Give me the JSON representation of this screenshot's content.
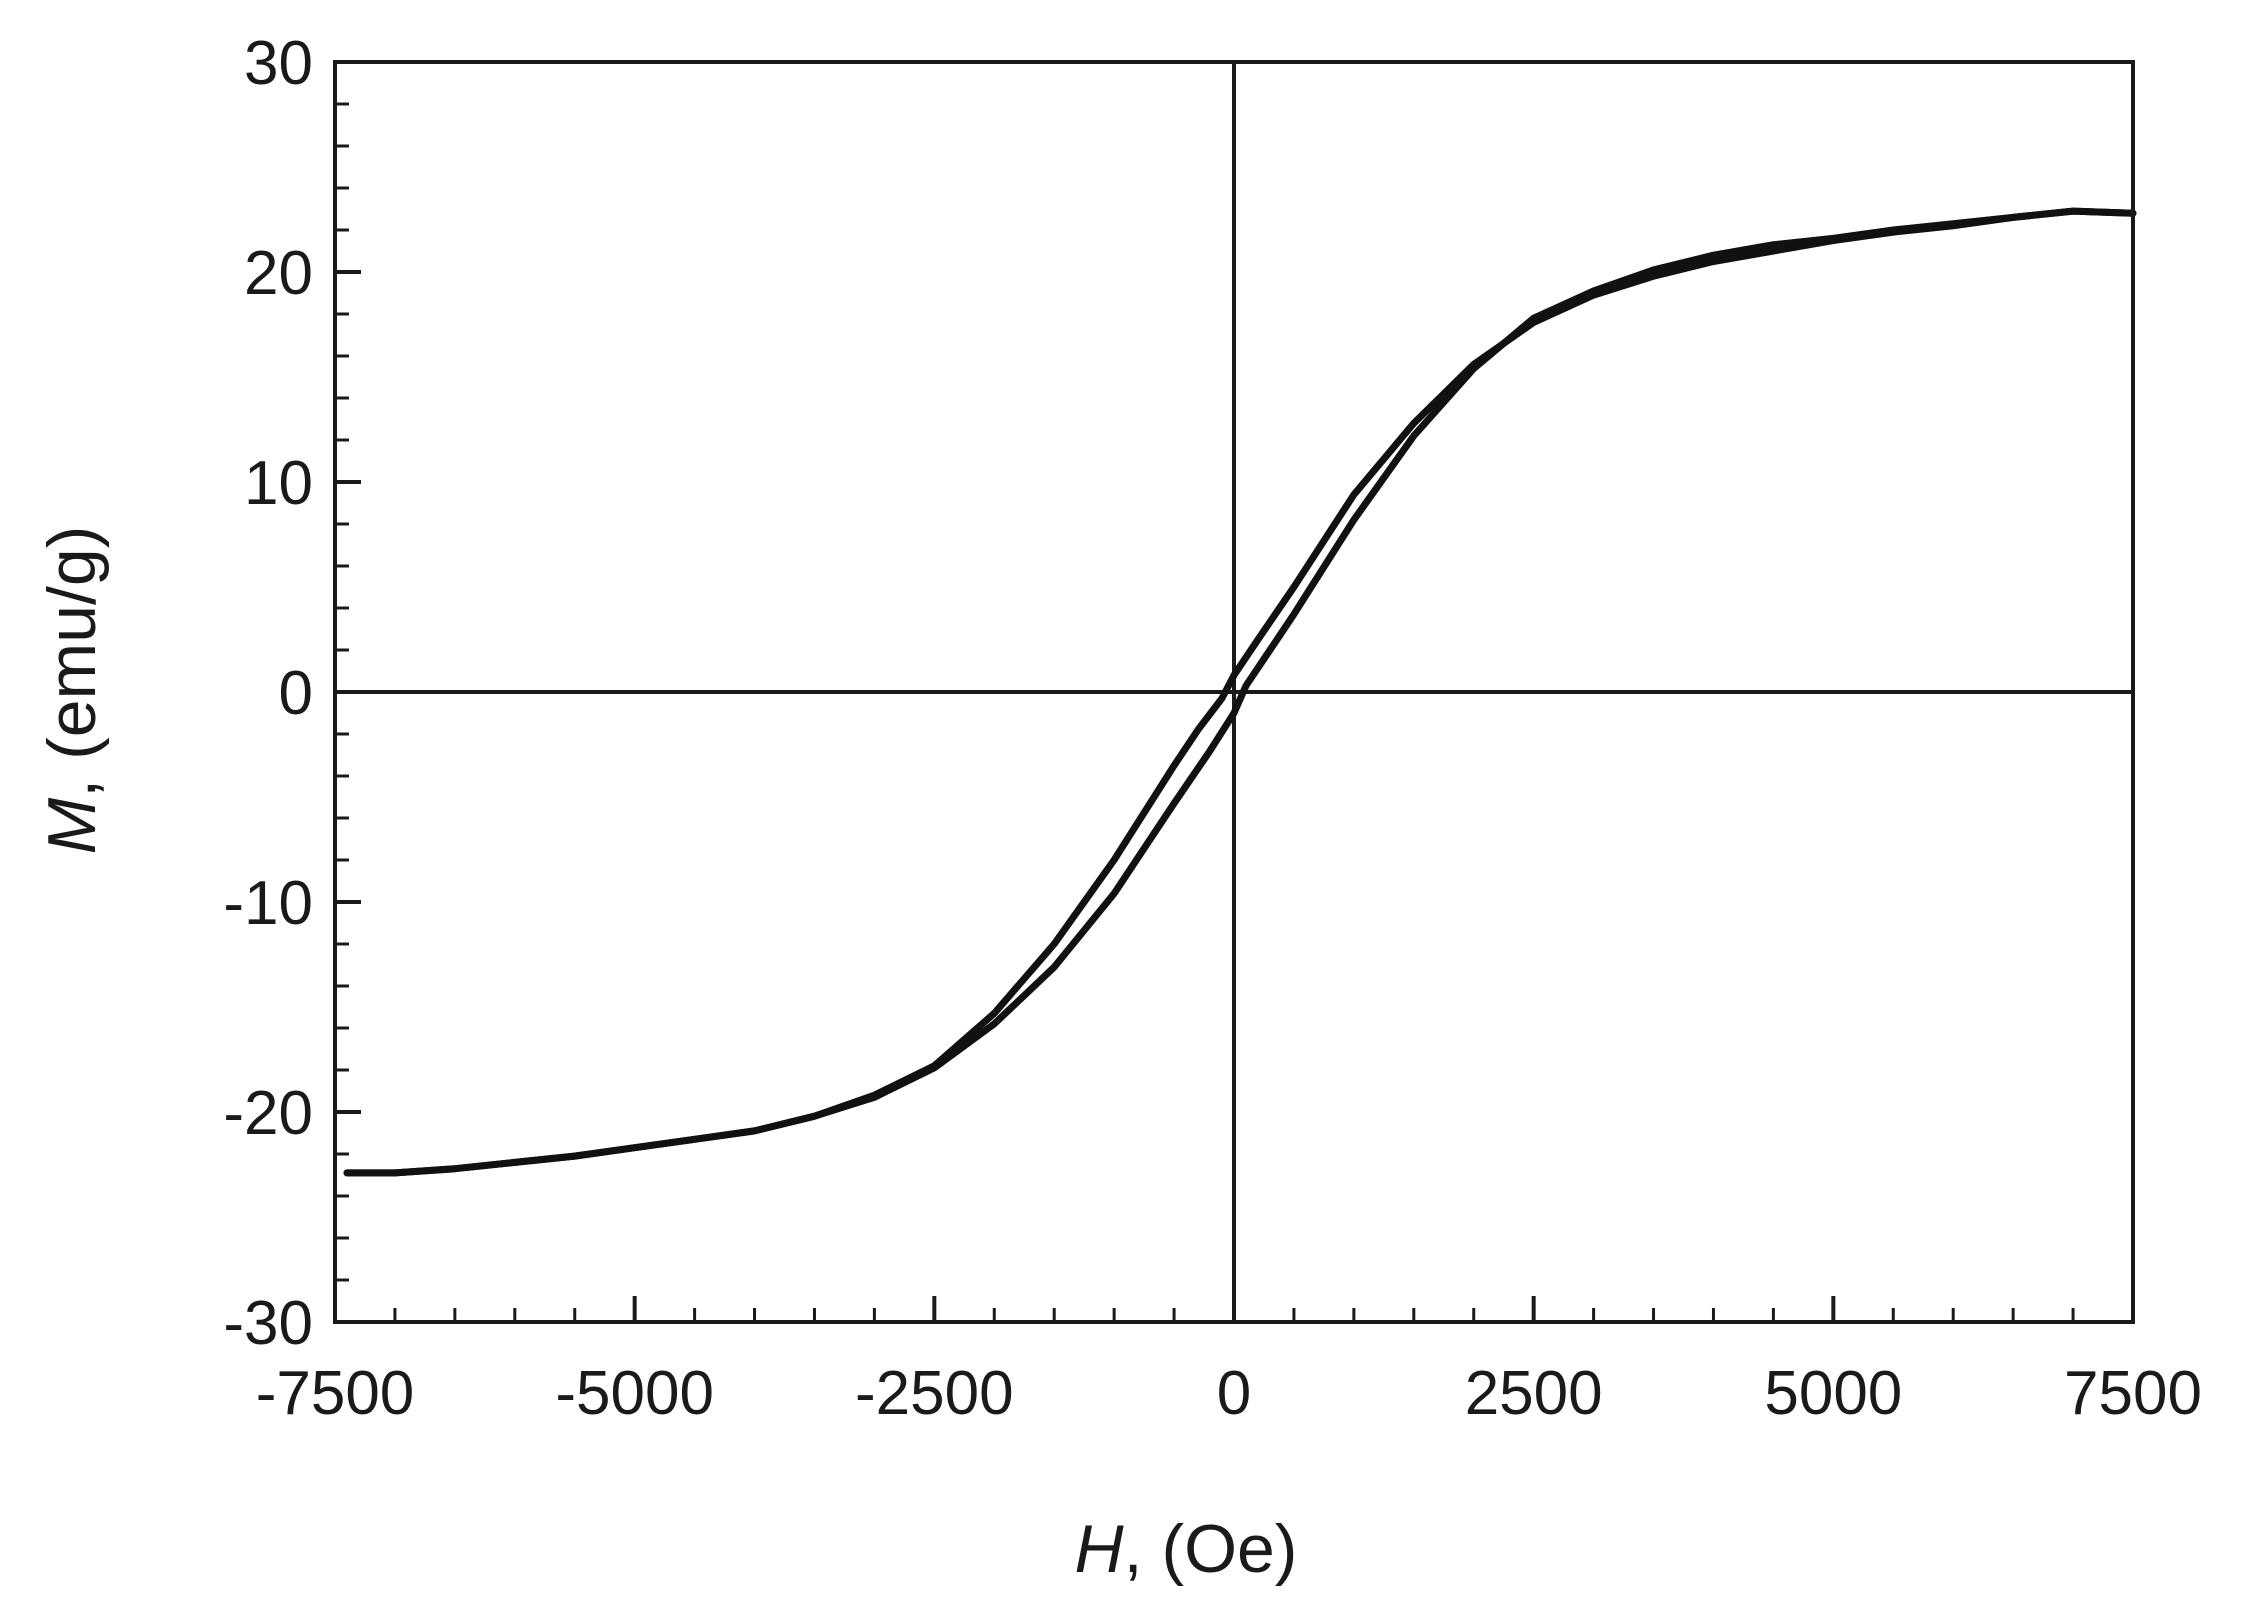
{
  "chart_data": {
    "type": "line",
    "xlabel_symbol": "H",
    "xlabel_unit": ", (Oe)",
    "ylabel_symbol": "M",
    "ylabel_unit": ", (emu/g)",
    "xlim": [
      -7500,
      7500
    ],
    "ylim": [
      -30,
      30
    ],
    "x_ticks": [
      -7500,
      -5000,
      -2500,
      0,
      2500,
      5000,
      7500
    ],
    "x_tick_labels": [
      "-7500",
      "-5000",
      "-2500",
      "0",
      "2500",
      "5000",
      "7500"
    ],
    "y_ticks": [
      -30,
      -20,
      -10,
      0,
      10,
      20,
      30
    ],
    "y_tick_labels": [
      "-30",
      "-20",
      "-10",
      "0",
      "10",
      "20",
      "30"
    ],
    "x_minor_step": 500,
    "y_minor_step": 2,
    "grid": false,
    "zero_lines": true,
    "line_color": "#111111",
    "series": [
      {
        "branch": "descending",
        "x": [
          7500,
          7000,
          6500,
          6000,
          5500,
          5000,
          4500,
          4000,
          3500,
          3000,
          2500,
          2000,
          1500,
          1000,
          500,
          200,
          0,
          -100,
          -300,
          -500,
          -1000,
          -1500,
          -2000,
          -2500,
          -3000,
          -3500,
          -4000,
          -4500,
          -5000,
          -5500,
          -6000,
          -6500,
          -7000,
          -7400
        ],
        "y": [
          22.8,
          22.9,
          22.6,
          22.2,
          21.9,
          21.5,
          21.0,
          20.5,
          19.8,
          18.9,
          17.6,
          15.6,
          12.8,
          9.4,
          5.0,
          2.5,
          0.8,
          -0.3,
          -1.8,
          -3.5,
          -8.0,
          -12.0,
          -15.3,
          -17.8,
          -19.2,
          -20.2,
          -20.9,
          -21.3,
          -21.7,
          -22.1,
          -22.4,
          -22.7,
          -22.9,
          -22.9
        ]
      },
      {
        "branch": "ascending",
        "x": [
          -7400,
          -7000,
          -6500,
          -6000,
          -5500,
          -5000,
          -4500,
          -4000,
          -3500,
          -3000,
          -2500,
          -2000,
          -1500,
          -1000,
          -500,
          -200,
          0,
          100,
          300,
          500,
          1000,
          1500,
          2000,
          2500,
          3000,
          3500,
          4000,
          4500,
          5000,
          5500,
          6000,
          6500,
          7000,
          7500
        ],
        "y": [
          -22.9,
          -22.9,
          -22.7,
          -22.4,
          -22.1,
          -21.7,
          -21.3,
          -20.9,
          -20.2,
          -19.3,
          -17.9,
          -15.8,
          -13.1,
          -9.6,
          -5.3,
          -2.8,
          -1.0,
          0.3,
          2.0,
          3.7,
          8.2,
          12.2,
          15.4,
          17.8,
          19.1,
          20.1,
          20.8,
          21.3,
          21.6,
          22.0,
          22.3,
          22.6,
          22.9,
          22.8
        ]
      }
    ]
  }
}
